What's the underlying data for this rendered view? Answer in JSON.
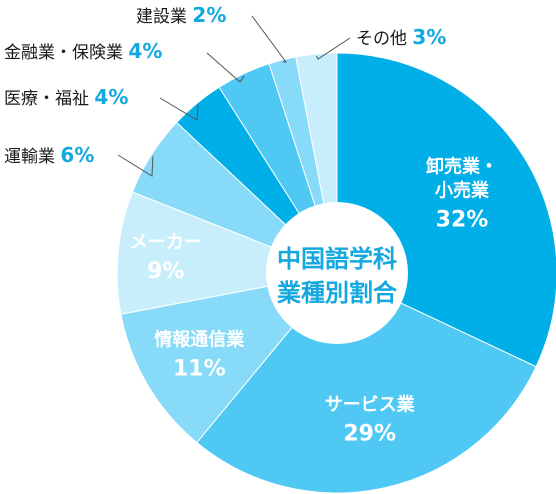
{
  "chart_data": {
    "type": "pie",
    "title": "中国語学科業種別割合",
    "title_lines": [
      "中国語学科",
      "業種別割合"
    ],
    "unit": "%",
    "slices": [
      {
        "label": "卸売業・小売業",
        "label_lines": [
          "卸売業・",
          "小売業"
        ],
        "value": 32,
        "display": "32%",
        "color": "#00aee8",
        "label_position": "inside"
      },
      {
        "label": "サービス業",
        "label_lines": [
          "サービス業"
        ],
        "value": 29,
        "display": "29%",
        "color": "#4fc8f4",
        "label_position": "inside"
      },
      {
        "label": "情報通信業",
        "label_lines": [
          "情報通信業"
        ],
        "value": 11,
        "display": "11%",
        "color": "#87daf8",
        "label_position": "inside"
      },
      {
        "label": "メーカー",
        "label_lines": [
          "メーカー"
        ],
        "value": 9,
        "display": "9%",
        "color": "#c8eefc",
        "label_position": "inside"
      },
      {
        "label": "運輸業",
        "label_lines": [
          "運輸業"
        ],
        "value": 6,
        "display": "6%",
        "color": "#87daf8",
        "label_position": "outside"
      },
      {
        "label": "医療・福祉",
        "label_lines": [
          "医療・福祉"
        ],
        "value": 4,
        "display": "4%",
        "color": "#00aee8",
        "label_position": "outside"
      },
      {
        "label": "金融業・保険業",
        "label_lines": [
          "金融業・保険業"
        ],
        "value": 4,
        "display": "4%",
        "color": "#4fc8f4",
        "label_position": "outside"
      },
      {
        "label": "建設業",
        "label_lines": [
          "建設業"
        ],
        "value": 2,
        "display": "2%",
        "color": "#87daf8",
        "label_position": "outside"
      },
      {
        "label": "その他",
        "label_lines": [
          "その他"
        ],
        "value": 3,
        "display": "3%",
        "color": "#c8eefc",
        "label_position": "outside"
      }
    ],
    "start_angle_deg": 0,
    "direction": "clockwise",
    "donut": true,
    "legend": "none"
  }
}
